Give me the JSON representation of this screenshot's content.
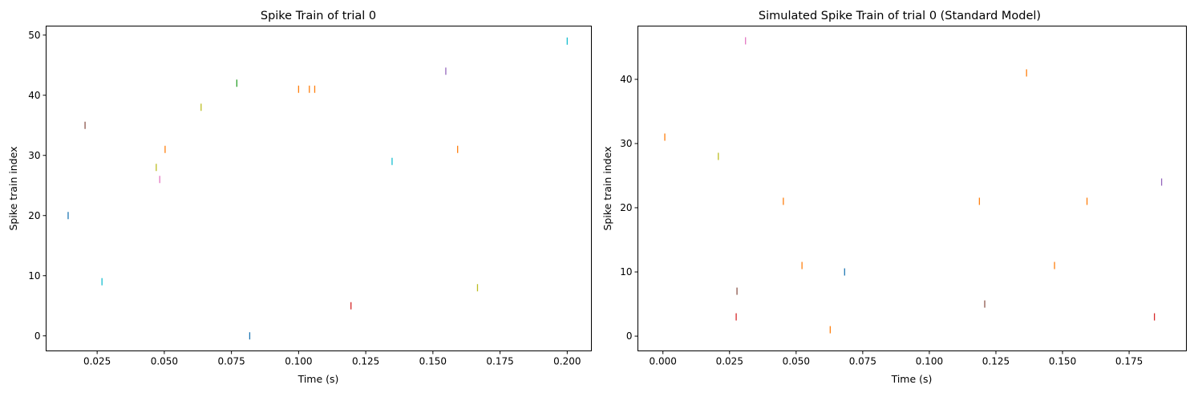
{
  "palette": [
    "#1f77b4",
    "#ff7f0e",
    "#2ca02c",
    "#d62728",
    "#9467bd",
    "#8c564b",
    "#e377c2",
    "#7f7f7f",
    "#bcbd22",
    "#17becf"
  ],
  "chart_data": [
    {
      "type": "scatter",
      "marker": "vertical-line",
      "title": "Spike Train of trial 0",
      "xlabel": "Time (s)",
      "ylabel": "Spike train index",
      "xlim": [
        0.006,
        0.209
      ],
      "ylim": [
        -2.5,
        51.5
      ],
      "xticks": [
        0.025,
        0.05,
        0.075,
        0.1,
        0.125,
        0.15,
        0.175,
        0.2
      ],
      "xtick_labels": [
        "0.025",
        "0.050",
        "0.075",
        "0.100",
        "0.125",
        "0.150",
        "0.175",
        "0.200"
      ],
      "yticks": [
        0,
        10,
        20,
        30,
        40,
        50
      ],
      "ytick_labels": [
        "0",
        "10",
        "20",
        "30",
        "40",
        "50"
      ],
      "grid": false,
      "points": [
        {
          "x": 0.0142,
          "y": 20,
          "color": "#1f77b4"
        },
        {
          "x": 0.0205,
          "y": 35,
          "color": "#8c564b"
        },
        {
          "x": 0.0268,
          "y": 9,
          "color": "#17becf"
        },
        {
          "x": 0.047,
          "y": 28,
          "color": "#bcbd22"
        },
        {
          "x": 0.0483,
          "y": 26,
          "color": "#e377c2"
        },
        {
          "x": 0.0503,
          "y": 31,
          "color": "#ff7f0e"
        },
        {
          "x": 0.0637,
          "y": 38,
          "color": "#bcbd22"
        },
        {
          "x": 0.077,
          "y": 42,
          "color": "#2ca02c"
        },
        {
          "x": 0.0818,
          "y": 0,
          "color": "#1f77b4"
        },
        {
          "x": 0.1,
          "y": 41,
          "color": "#ff7f0e"
        },
        {
          "x": 0.104,
          "y": 41,
          "color": "#ff7f0e"
        },
        {
          "x": 0.106,
          "y": 41,
          "color": "#ff7f0e"
        },
        {
          "x": 0.1195,
          "y": 5,
          "color": "#d62728"
        },
        {
          "x": 0.1348,
          "y": 29,
          "color": "#17becf"
        },
        {
          "x": 0.1548,
          "y": 44,
          "color": "#9467bd"
        },
        {
          "x": 0.1592,
          "y": 31,
          "color": "#ff7f0e"
        },
        {
          "x": 0.1666,
          "y": 8,
          "color": "#bcbd22"
        },
        {
          "x": 0.2,
          "y": 49,
          "color": "#17becf"
        }
      ]
    },
    {
      "type": "scatter",
      "marker": "vertical-line",
      "title": "Simulated Spike Train of trial 0 (Standard Model)",
      "xlabel": "Time (s)",
      "ylabel": "Spike train index",
      "xlim": [
        -0.0094,
        0.1965
      ],
      "ylim": [
        -2.3,
        48.3
      ],
      "xticks": [
        0,
        0.025,
        0.05,
        0.075,
        0.1,
        0.125,
        0.15,
        0.175
      ],
      "xtick_labels": [
        "0.000",
        "0.025",
        "0.050",
        "0.075",
        "0.100",
        "0.125",
        "0.150",
        "0.175"
      ],
      "yticks": [
        0,
        10,
        20,
        30,
        40
      ],
      "ytick_labels": [
        "0",
        "10",
        "20",
        "30",
        "40"
      ],
      "grid": false,
      "points": [
        {
          "x": 0.0007,
          "y": 31,
          "color": "#ff7f0e"
        },
        {
          "x": 0.0208,
          "y": 28,
          "color": "#bcbd22"
        },
        {
          "x": 0.0275,
          "y": 3,
          "color": "#d62728"
        },
        {
          "x": 0.0278,
          "y": 7,
          "color": "#8c564b"
        },
        {
          "x": 0.031,
          "y": 46,
          "color": "#e377c2"
        },
        {
          "x": 0.0452,
          "y": 21,
          "color": "#ff7f0e"
        },
        {
          "x": 0.0522,
          "y": 11,
          "color": "#ff7f0e"
        },
        {
          "x": 0.0628,
          "y": 1,
          "color": "#ff7f0e"
        },
        {
          "x": 0.0682,
          "y": 10,
          "color": "#1f77b4"
        },
        {
          "x": 0.1188,
          "y": 21,
          "color": "#ff7f0e"
        },
        {
          "x": 0.1208,
          "y": 5,
          "color": "#8c564b"
        },
        {
          "x": 0.1365,
          "y": 41,
          "color": "#ff7f0e"
        },
        {
          "x": 0.147,
          "y": 11,
          "color": "#ff7f0e"
        },
        {
          "x": 0.1592,
          "y": 21,
          "color": "#ff7f0e"
        },
        {
          "x": 0.1845,
          "y": 3,
          "color": "#d62728"
        },
        {
          "x": 0.1872,
          "y": 24,
          "color": "#9467bd"
        }
      ]
    }
  ]
}
